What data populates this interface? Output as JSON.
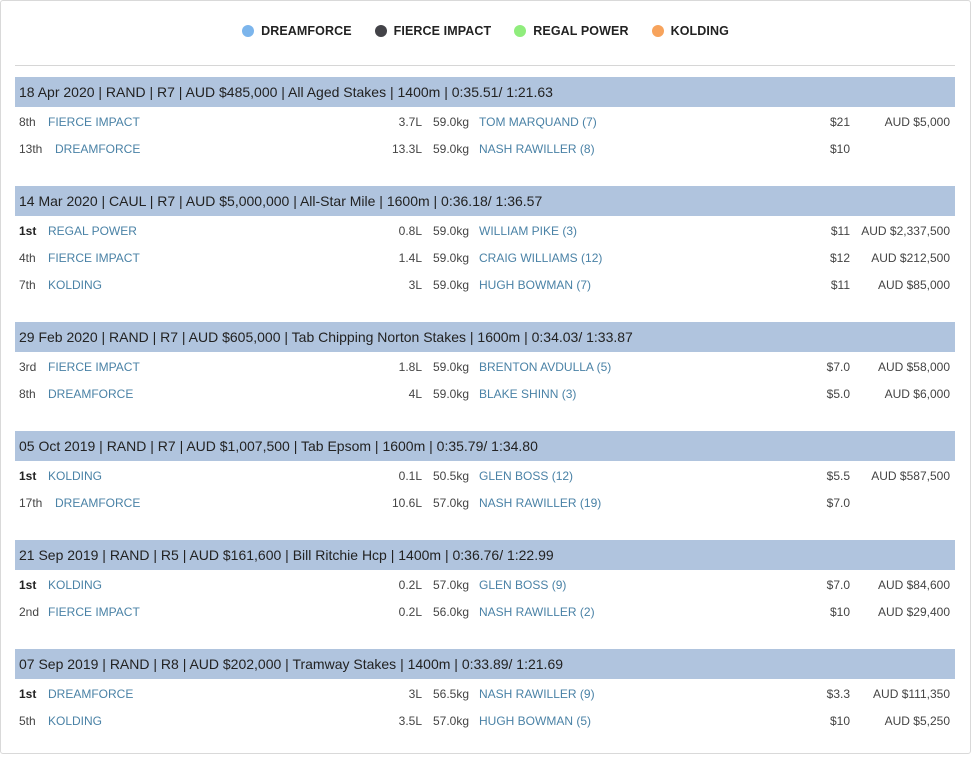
{
  "legend": [
    {
      "label": "DREAMFORCE",
      "color": "#7cb5ec"
    },
    {
      "label": "FIERCE IMPACT",
      "color": "#434348"
    },
    {
      "label": "REGAL POWER",
      "color": "#90ed7d"
    },
    {
      "label": "KOLDING",
      "color": "#f7a35c"
    }
  ],
  "races": [
    {
      "header": "18 Apr 2020 | RAND | R7 | AUD $485,000 | All Aged Stakes | 1400m | 0:35.51/ 1:21.63",
      "runners": [
        {
          "pos": "8th",
          "horse": "FIERCE IMPACT",
          "margin": "3.7L",
          "weight": "59.0kg",
          "jockey": "TOM MARQUAND (7)",
          "odds": "$21",
          "prize": "AUD $5,000"
        },
        {
          "pos": "13th",
          "horse": "DREAMFORCE",
          "margin": "13.3L",
          "weight": "59.0kg",
          "jockey": "NASH RAWILLER (8)",
          "odds": "$10",
          "prize": ""
        }
      ]
    },
    {
      "header": "14 Mar 2020 | CAUL | R7 | AUD $5,000,000 | All-Star Mile | 1600m | 0:36.18/ 1:36.57",
      "runners": [
        {
          "pos": "1st",
          "horse": "REGAL POWER",
          "margin": "0.8L",
          "weight": "59.0kg",
          "jockey": "WILLIAM PIKE (3)",
          "odds": "$11",
          "prize": "AUD $2,337,500"
        },
        {
          "pos": "4th",
          "horse": "FIERCE IMPACT",
          "margin": "1.4L",
          "weight": "59.0kg",
          "jockey": "CRAIG WILLIAMS (12)",
          "odds": "$12",
          "prize": "AUD $212,500"
        },
        {
          "pos": "7th",
          "horse": "KOLDING",
          "margin": "3L",
          "weight": "59.0kg",
          "jockey": "HUGH BOWMAN (7)",
          "odds": "$11",
          "prize": "AUD $85,000"
        }
      ]
    },
    {
      "header": "29 Feb 2020 | RAND | R7 | AUD $605,000 | Tab Chipping Norton Stakes | 1600m | 0:34.03/ 1:33.87",
      "runners": [
        {
          "pos": "3rd",
          "horse": "FIERCE IMPACT",
          "margin": "1.8L",
          "weight": "59.0kg",
          "jockey": "BRENTON AVDULLA (5)",
          "odds": "$7.0",
          "prize": "AUD $58,000"
        },
        {
          "pos": "8th",
          "horse": "DREAMFORCE",
          "margin": "4L",
          "weight": "59.0kg",
          "jockey": "BLAKE SHINN (3)",
          "odds": "$5.0",
          "prize": "AUD $6,000"
        }
      ]
    },
    {
      "header": "05 Oct 2019 | RAND | R7 | AUD $1,007,500 | Tab Epsom | 1600m | 0:35.79/ 1:34.80",
      "runners": [
        {
          "pos": "1st",
          "horse": "KOLDING",
          "margin": "0.1L",
          "weight": "50.5kg",
          "jockey": "GLEN BOSS (12)",
          "odds": "$5.5",
          "prize": "AUD $587,500"
        },
        {
          "pos": "17th",
          "horse": "DREAMFORCE",
          "margin": "10.6L",
          "weight": "57.0kg",
          "jockey": "NASH RAWILLER (19)",
          "odds": "$7.0",
          "prize": ""
        }
      ]
    },
    {
      "header": "21 Sep 2019 | RAND | R5 | AUD $161,600 | Bill Ritchie Hcp | 1400m | 0:36.76/ 1:22.99",
      "runners": [
        {
          "pos": "1st",
          "horse": "KOLDING",
          "margin": "0.2L",
          "weight": "57.0kg",
          "jockey": "GLEN BOSS (9)",
          "odds": "$7.0",
          "prize": "AUD $84,600"
        },
        {
          "pos": "2nd",
          "horse": "FIERCE IMPACT",
          "margin": "0.2L",
          "weight": "56.0kg",
          "jockey": "NASH RAWILLER (2)",
          "odds": "$10",
          "prize": "AUD $29,400"
        }
      ]
    },
    {
      "header": "07 Sep 2019 | RAND | R8 | AUD $202,000 | Tramway Stakes | 1400m | 0:33.89/ 1:21.69",
      "runners": [
        {
          "pos": "1st",
          "horse": "DREAMFORCE",
          "margin": "3L",
          "weight": "56.5kg",
          "jockey": "NASH RAWILLER (9)",
          "odds": "$3.3",
          "prize": "AUD $111,350"
        },
        {
          "pos": "5th",
          "horse": "KOLDING",
          "margin": "3.5L",
          "weight": "57.0kg",
          "jockey": "HUGH BOWMAN (5)",
          "odds": "$10",
          "prize": "AUD $5,250"
        }
      ]
    }
  ]
}
